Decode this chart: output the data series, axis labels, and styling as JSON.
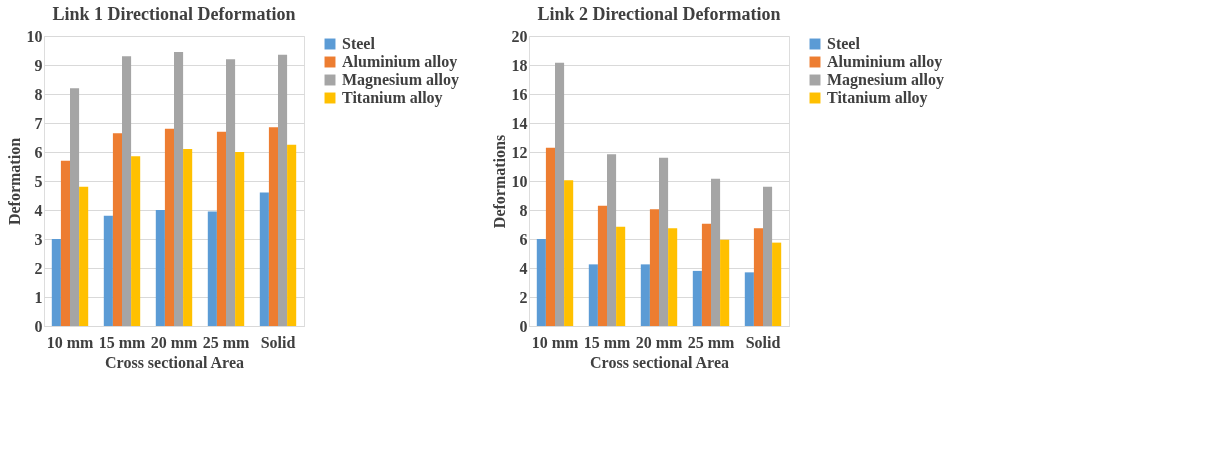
{
  "chart_data": [
    {
      "type": "bar",
      "title": "Link 1 Directional Deformation",
      "xlabel": "Cross sectional Area",
      "ylabel": "Deformation",
      "categories": [
        "10 mm",
        "15 mm",
        "20 mm",
        "25 mm",
        "Solid"
      ],
      "ylim": [
        0,
        10
      ],
      "yticks": [
        0,
        1,
        2,
        3,
        4,
        5,
        6,
        7,
        8,
        9,
        10
      ],
      "grid": "y",
      "legend": "right",
      "series": [
        {
          "name": "Steel",
          "color": "#5b9bd5",
          "values": [
            3.0,
            3.8,
            4.0,
            3.95,
            4.6
          ]
        },
        {
          "name": "Aluminium alloy",
          "color": "#ed7d31",
          "values": [
            5.7,
            6.65,
            6.8,
            6.7,
            6.85
          ]
        },
        {
          "name": "Magnesium alloy",
          "color": "#a5a5a5",
          "values": [
            8.2,
            9.3,
            9.45,
            9.2,
            9.35
          ]
        },
        {
          "name": "Titanium alloy",
          "color": "#ffc000",
          "values": [
            4.8,
            5.85,
            6.1,
            6.0,
            6.25
          ]
        }
      ]
    },
    {
      "type": "bar",
      "title": "Link 2 Directional Deformation",
      "xlabel": "Cross sectional Area",
      "ylabel": "Deformations",
      "categories": [
        "10 mm",
        "15 mm",
        "20 mm",
        "25 mm",
        "Solid"
      ],
      "ylim": [
        0,
        20
      ],
      "yticks": [
        0,
        2,
        4,
        6,
        8,
        10,
        12,
        14,
        16,
        18,
        20
      ],
      "grid": "y",
      "legend": "right",
      "series": [
        {
          "name": "Steel",
          "color": "#5b9bd5",
          "values": [
            6.0,
            4.25,
            4.25,
            3.8,
            3.7
          ]
        },
        {
          "name": "Aluminium alloy",
          "color": "#ed7d31",
          "values": [
            12.3,
            8.3,
            8.05,
            7.05,
            6.75
          ]
        },
        {
          "name": "Magnesium alloy",
          "color": "#a5a5a5",
          "values": [
            18.15,
            11.85,
            11.6,
            10.15,
            9.6
          ]
        },
        {
          "name": "Titanium alloy",
          "color": "#ffc000",
          "values": [
            10.05,
            6.85,
            6.75,
            5.95,
            5.75
          ]
        }
      ]
    }
  ]
}
